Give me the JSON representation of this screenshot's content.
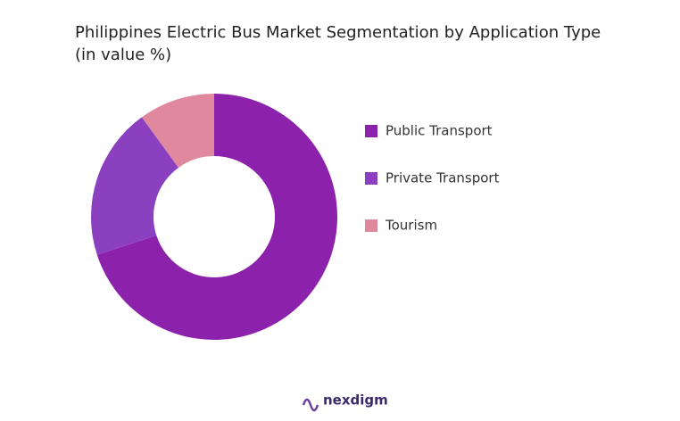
{
  "chart_data": {
    "type": "donut",
    "title": "Philippines Electric Bus Market Segmentation by Application Type (in value %)",
    "categories": [
      "Public Transport",
      "Private Transport",
      "Tourism"
    ],
    "values": [
      70,
      20,
      10
    ],
    "colors": [
      "#8c22ab",
      "#8a40bf",
      "#e0899e"
    ],
    "brand": "nexdigm"
  }
}
